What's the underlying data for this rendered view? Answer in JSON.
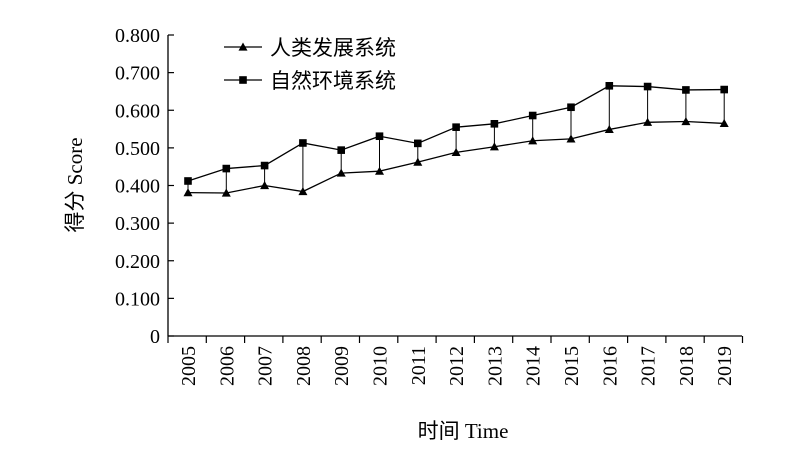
{
  "chart_data": {
    "type": "line",
    "title": "",
    "xlabel": "时间 Time",
    "ylabel": "得分 Score",
    "x": [
      "2005",
      "2006",
      "2007",
      "2008",
      "2009",
      "2010",
      "2011",
      "2012",
      "2013",
      "2014",
      "2015",
      "2016",
      "2017",
      "2018",
      "2019"
    ],
    "ylim": [
      0,
      0.8
    ],
    "yticks": [
      "0",
      "0.100",
      "0.200",
      "0.300",
      "0.400",
      "0.500",
      "0.600",
      "0.700",
      "0.800"
    ],
    "grid": false,
    "legend_position": "top-left",
    "connectors": "vertical lines join the two series at each year",
    "series": [
      {
        "name": "人类发展系统",
        "marker": "triangle",
        "color": "#000000",
        "values": [
          0.381,
          0.38,
          0.4,
          0.384,
          0.433,
          0.438,
          0.462,
          0.488,
          0.503,
          0.519,
          0.524,
          0.549,
          0.568,
          0.57,
          0.565
        ]
      },
      {
        "name": "自然环境系统",
        "marker": "square",
        "color": "#000000",
        "values": [
          0.412,
          0.445,
          0.453,
          0.513,
          0.494,
          0.531,
          0.512,
          0.555,
          0.564,
          0.586,
          0.608,
          0.665,
          0.663,
          0.654,
          0.655
        ]
      }
    ]
  }
}
